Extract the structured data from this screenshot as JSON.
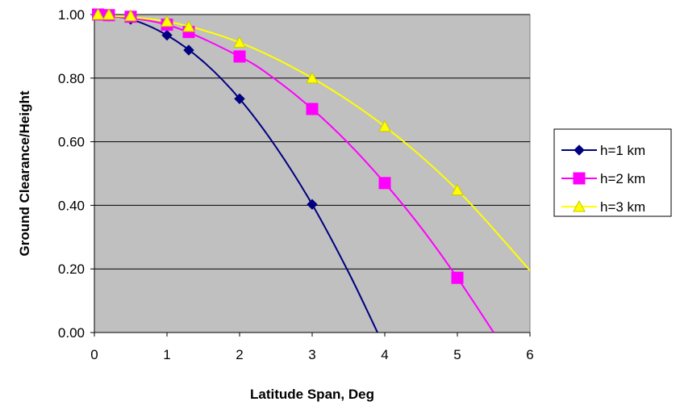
{
  "chart_data": {
    "type": "line",
    "title": "",
    "xlabel": "Latitude Span, Deg",
    "ylabel": "Ground Clearance/Height",
    "xlim": [
      0,
      6
    ],
    "ylim": [
      0,
      1
    ],
    "x_ticks": [
      "0",
      "1",
      "2",
      "3",
      "4",
      "5",
      "6"
    ],
    "y_ticks": [
      "0.00",
      "0.20",
      "0.40",
      "0.60",
      "0.80",
      "1.00"
    ],
    "grid": "horizontal",
    "plot_background": "#c0c0c0",
    "legend_position": "right",
    "series": [
      {
        "name": "h=1 km",
        "color": "#000080",
        "marker": "diamond",
        "x": [
          0.05,
          0.2,
          0.5,
          1.0,
          1.3,
          2.0,
          3.0
        ],
        "y": [
          1.0,
          0.995,
          0.985,
          0.935,
          0.888,
          0.735,
          0.403
        ],
        "curve_x": [
          0,
          0.5,
          1,
          1.5,
          2,
          2.5,
          3,
          3.5,
          3.9
        ],
        "curve_y": [
          1.0,
          0.985,
          0.935,
          0.852,
          0.735,
          0.584,
          0.403,
          0.19,
          0.0
        ]
      },
      {
        "name": "h=2 km",
        "color": "#ff00ff",
        "marker": "square",
        "x": [
          0.05,
          0.2,
          0.5,
          1.0,
          1.3,
          2.0,
          3.0,
          4.0,
          5.0
        ],
        "y": [
          1.0,
          0.998,
          0.993,
          0.968,
          0.945,
          0.868,
          0.703,
          0.47,
          0.172
        ],
        "curve_x": [
          0,
          1,
          2,
          2.5,
          3,
          3.5,
          4,
          4.5,
          5,
          5.5
        ],
        "curve_y": [
          1.0,
          0.968,
          0.868,
          0.795,
          0.703,
          0.595,
          0.47,
          0.33,
          0.172,
          0.0
        ]
      },
      {
        "name": "h=3 km",
        "color": "#ffff00",
        "marker": "triangle",
        "x": [
          0.05,
          0.2,
          0.5,
          1.0,
          1.3,
          2.0,
          3.0,
          4.0,
          5.0
        ],
        "y": [
          1.0,
          1.0,
          0.996,
          0.978,
          0.962,
          0.912,
          0.8,
          0.648,
          0.448
        ],
        "curve_x": [
          0,
          1,
          2,
          3,
          4,
          5,
          6
        ],
        "curve_y": [
          1.0,
          0.978,
          0.912,
          0.8,
          0.648,
          0.448,
          0.195
        ]
      }
    ]
  }
}
